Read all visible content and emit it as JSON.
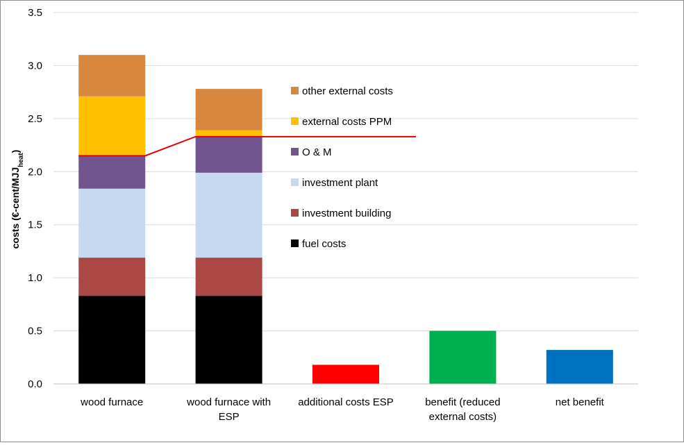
{
  "chart_data": {
    "type": "bar",
    "stacked": true,
    "title": "",
    "xlabel": "",
    "ylabel": "costs (€-cent/MJJ",
    "ylabel_sub": "heat",
    "ylabel_close": ")",
    "ylim": [
      0,
      3.5
    ],
    "ytick_values": [
      0,
      0.5,
      1.0,
      1.5,
      2.0,
      2.5,
      3.0,
      3.5
    ],
    "ytick_labels": [
      "0.0",
      "0.5",
      "1.0",
      "1.5",
      "2.0",
      "2.5",
      "3.0",
      "3.5"
    ],
    "grid": true,
    "legend_position": "center",
    "categories": [
      [
        "wood furnace"
      ],
      [
        "wood furnace with",
        "ESP"
      ],
      [
        "additional costs ESP"
      ],
      [
        "benefit (reduced",
        "external costs)"
      ],
      [
        "net benefit"
      ]
    ],
    "series": [
      {
        "name": "fuel costs",
        "color": "#000000",
        "values": [
          0.83,
          0.83,
          null,
          null,
          null
        ]
      },
      {
        "name": "investment building",
        "color": "#ab4744",
        "values": [
          0.36,
          0.36,
          null,
          null,
          null
        ]
      },
      {
        "name": "investment plant",
        "color": "#c6d9f1",
        "values": [
          0.65,
          0.8,
          null,
          null,
          null
        ]
      },
      {
        "name": "O & M",
        "color": "#72558f",
        "values": [
          0.31,
          0.34,
          null,
          null,
          null
        ]
      },
      {
        "name": "external costs PPM",
        "color": "#ffc000",
        "values": [
          0.56,
          0.06,
          null,
          null,
          null
        ]
      },
      {
        "name": "other external costs",
        "color": "#d8873f",
        "values": [
          0.39,
          0.39,
          null,
          null,
          null
        ]
      }
    ],
    "single_bars": [
      {
        "category_index": 2,
        "value": 0.18,
        "color": "#ff0000"
      },
      {
        "category_index": 3,
        "value": 0.5,
        "color": "#00b050"
      },
      {
        "category_index": 4,
        "value": 0.32,
        "color": "#0070c0"
      }
    ],
    "reference_line": {
      "color": "#e00000",
      "points": [
        [
          0,
          2.15
        ],
        [
          1,
          2.33
        ],
        [
          2.6,
          2.33
        ]
      ]
    },
    "legend_order": [
      "other external costs",
      "external costs PPM",
      "O & M",
      "investment plant",
      "investment building",
      "fuel costs"
    ]
  }
}
